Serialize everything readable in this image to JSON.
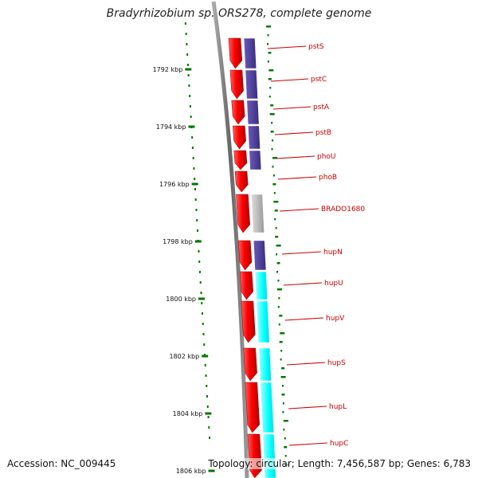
{
  "header": {
    "title": "Bradyrhizobium sp. ORS278, complete genome"
  },
  "footer": {
    "accession": "Accession: NC_009445",
    "topology": "Topology: circular; Length: 7,456,587 bp; Genes: 6,783"
  },
  "colors": {
    "gene_red": "#ff0000",
    "cog_purple": "#4c3c99",
    "cog_cyan": "#00ffff",
    "cog_gray": "#b3b3b3",
    "backbone": "#777777",
    "gc_skew_green": "#007700",
    "label_red": "#cc0000"
  },
  "scale": {
    "ticks": [
      "1792 kbp",
      "1794 kbp",
      "1796 kbp",
      "1798 kbp",
      "1800 kbp",
      "1802 kbp",
      "1804 kbp",
      "1806 kbp"
    ]
  },
  "genes": [
    {
      "label": "pstS",
      "cog": "purple"
    },
    {
      "label": "pstC",
      "cog": "purple"
    },
    {
      "label": "pstA",
      "cog": "purple"
    },
    {
      "label": "pstB",
      "cog": "purple"
    },
    {
      "label": "phoU",
      "cog": "purple"
    },
    {
      "label": "phoB",
      "cog": "none"
    },
    {
      "label": "BRADO1680",
      "cog": "gray"
    },
    {
      "label": "hupN",
      "cog": "purple"
    },
    {
      "label": "hupU",
      "cog": "cyan"
    },
    {
      "label": "hupV",
      "cog": "cyan"
    },
    {
      "label": "hupS",
      "cog": "cyan"
    },
    {
      "label": "hupL",
      "cog": "cyan"
    },
    {
      "label": "hupC",
      "cog": "cyan"
    }
  ]
}
